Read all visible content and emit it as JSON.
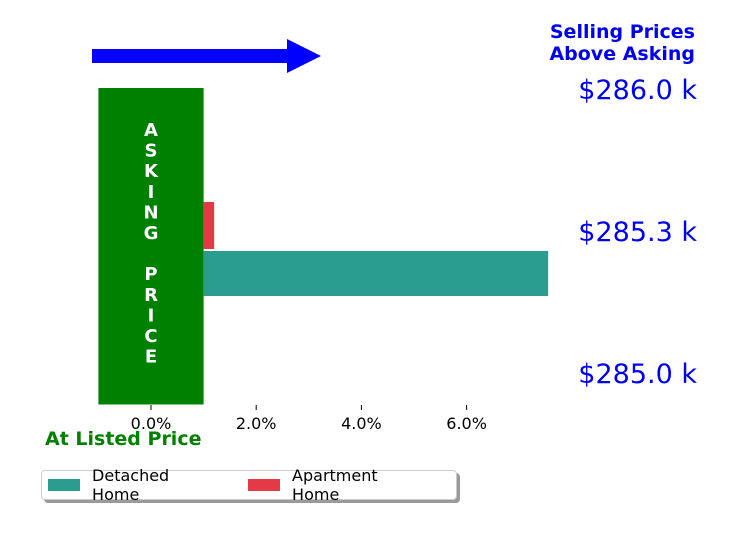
{
  "chart_data": {
    "type": "bar",
    "orientation": "horizontal",
    "title": "Selling Prices\nAbove Asking",
    "xlabel": "At Listed Price",
    "xlim": [
      -1.0,
      7.5
    ],
    "xticks": [
      0,
      2,
      4,
      6
    ],
    "xtick_labels": [
      "0.0%",
      "2.0%",
      "4.0%",
      "6.0%"
    ],
    "series": [
      {
        "name": "Detached Home",
        "color": "#2a9d8f",
        "values": [
          7.55
        ]
      },
      {
        "name": "Apartment Home",
        "color": "#e63946",
        "values": [
          1.2
        ]
      }
    ],
    "asking_price_band": {
      "label": "ASKING PRICE",
      "x0": -1.0,
      "x1": 1.0,
      "color": "#008000"
    },
    "right_price_labels": [
      "$286.0 k",
      "$285.3 k",
      "$285.0 k"
    ],
    "arrow_color": "#0000ff",
    "label_color": "#0000ee",
    "xlabel_color": "#008000",
    "legend_position": "bottom-left"
  }
}
